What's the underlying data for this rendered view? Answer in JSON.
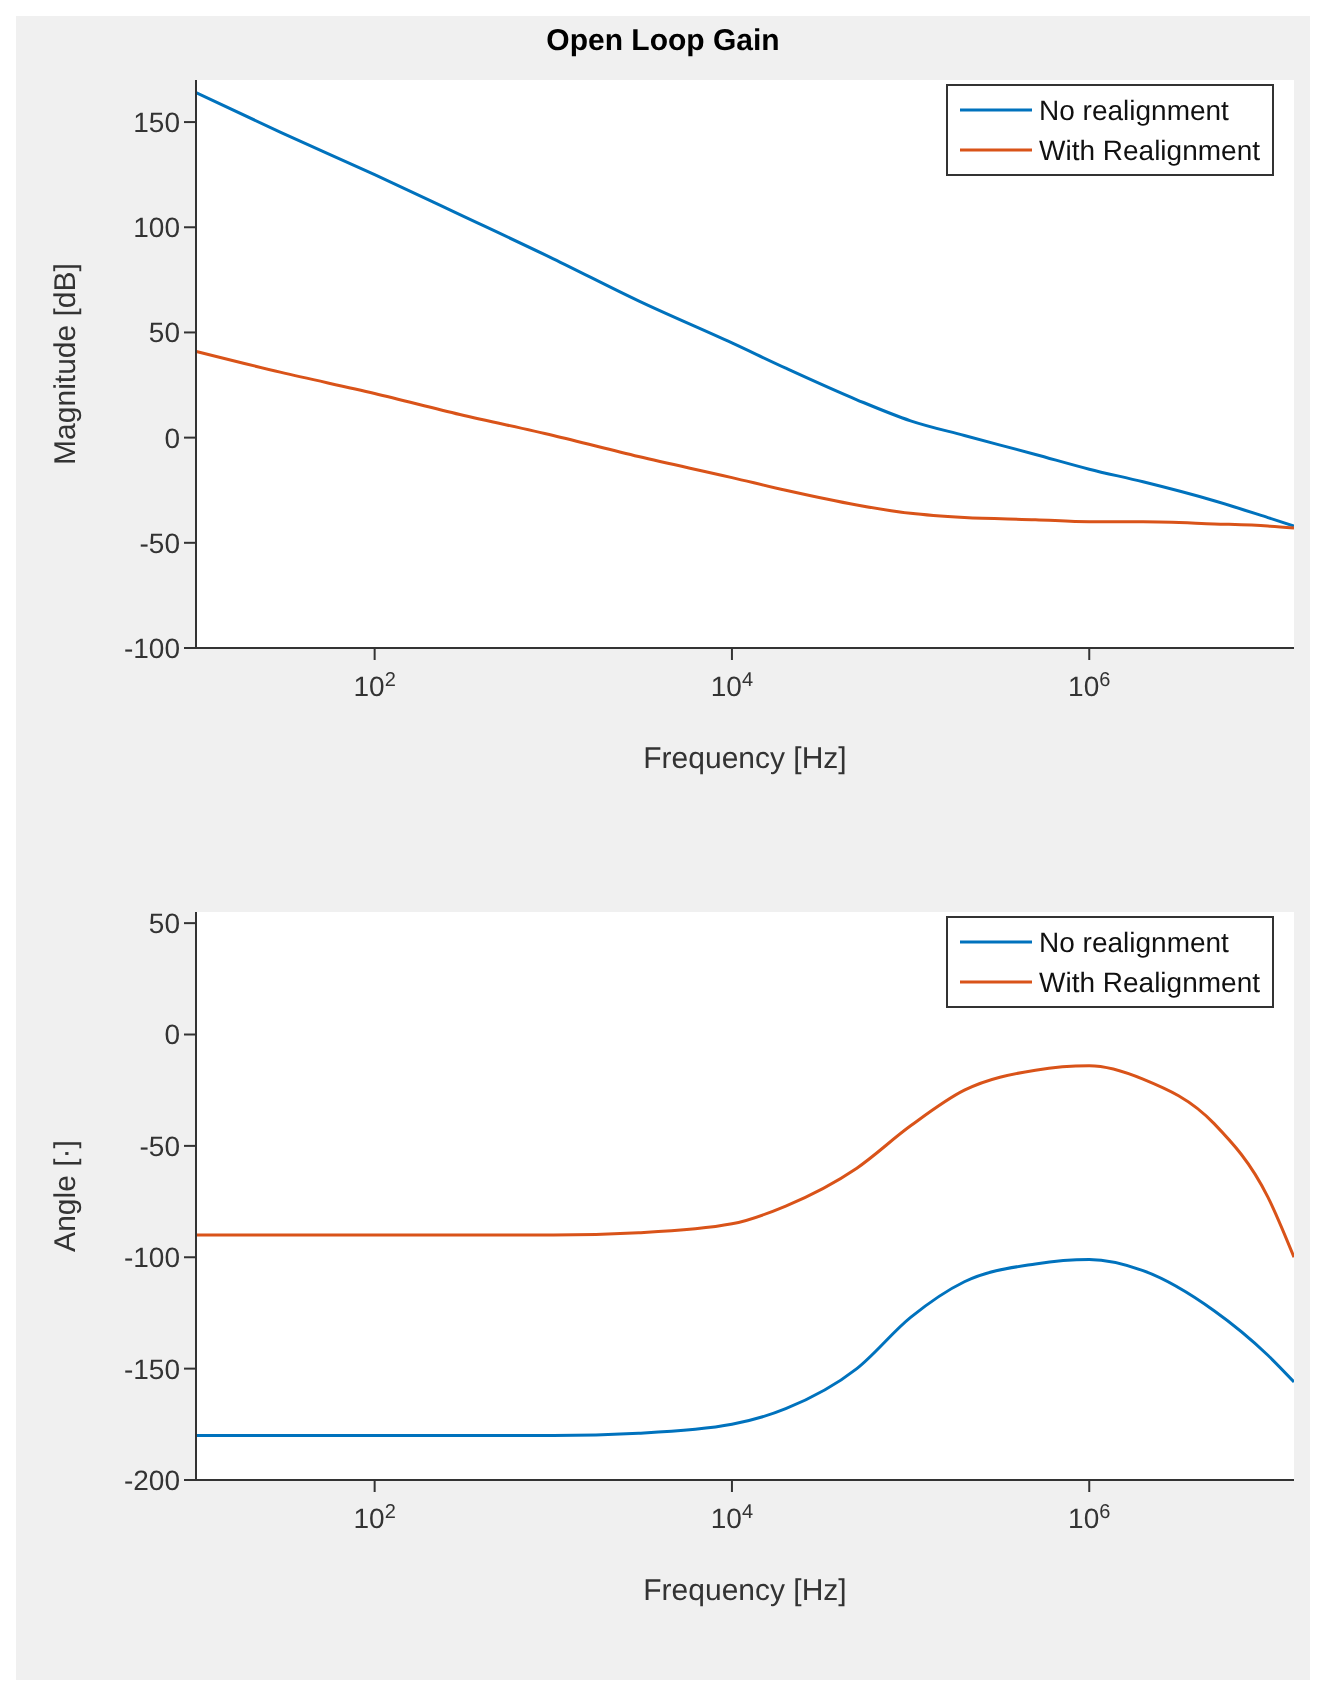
{
  "chart_data": [
    {
      "type": "line",
      "title": "Open Loop Gain",
      "xlabel": "Frequency [Hz]",
      "ylabel": "Magnitude [dB]",
      "log": "x",
      "grid": false,
      "legend": "top right",
      "marker": "none",
      "line_style": "solid",
      "x": [
        10,
        30,
        100,
        300,
        1000,
        3000,
        10000,
        20000,
        50000,
        100000,
        200000,
        500000,
        1000000,
        2000000,
        5000000,
        10000000,
        14000000
      ],
      "xlim": [
        10,
        14000000
      ],
      "xticks": [
        {
          "value": 100,
          "label": "10$^{2}$"
        },
        {
          "value": 10000,
          "label": "10$^{4}$"
        },
        {
          "value": 1000000,
          "label": "10$^{6}$"
        }
      ],
      "ylim": [
        -100,
        170
      ],
      "yticks": [
        -100,
        -50,
        0,
        50,
        100,
        150
      ],
      "series": [
        {
          "name": "No realignment",
          "color": "#0072bd",
          "values": [
            164,
            145,
            125,
            106,
            85,
            65,
            45,
            33,
            18,
            8,
            1,
            -8,
            -15,
            -21,
            -30,
            -38,
            -42
          ]
        },
        {
          "name": "With Realignment",
          "color": "#d95319",
          "values": [
            41,
            31,
            21,
            11,
            1,
            -9,
            -19,
            -25,
            -32,
            -36,
            -38,
            -39,
            -40,
            -40,
            -41,
            -42,
            -43
          ]
        }
      ]
    },
    {
      "type": "line",
      "xlabel": "Frequency [Hz]",
      "ylabel": "Angle [·]",
      "log": "x",
      "grid": false,
      "legend": "top right",
      "marker": "none",
      "line_style": "solid",
      "x": [
        10,
        30,
        100,
        300,
        1000,
        3000,
        10000,
        20000,
        50000,
        100000,
        200000,
        500000,
        1000000,
        2000000,
        5000000,
        10000000,
        14000000
      ],
      "xlim": [
        10,
        14000000
      ],
      "xticks": [
        {
          "value": 100,
          "label": "10$^{2}$"
        },
        {
          "value": 10000,
          "label": "10$^{4}$"
        },
        {
          "value": 1000000,
          "label": "10$^{6}$"
        }
      ],
      "ylim": [
        -200,
        55
      ],
      "yticks": [
        -200,
        -150,
        -100,
        -50,
        0,
        50
      ],
      "series": [
        {
          "name": "No realignment",
          "color": "#0072bd",
          "values": [
            -180,
            -180,
            -180,
            -180,
            -180,
            -179,
            -175,
            -168,
            -150,
            -127,
            -111,
            -103,
            -101,
            -106,
            -124,
            -144,
            -156
          ]
        },
        {
          "name": "With Realignment",
          "color": "#d95319",
          "values": [
            -90,
            -90,
            -90,
            -90,
            -90,
            -89,
            -85,
            -77,
            -60,
            -41,
            -25,
            -16,
            -14,
            -20,
            -40,
            -73,
            -100
          ]
        }
      ]
    }
  ]
}
